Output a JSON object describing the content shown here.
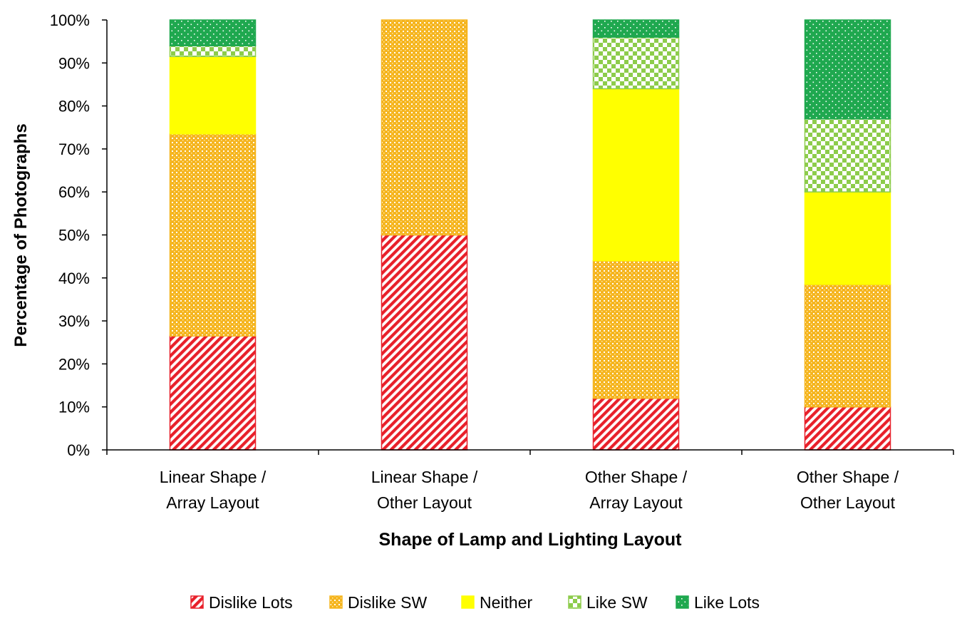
{
  "chart_data": {
    "type": "bar",
    "stacked": true,
    "normalized": true,
    "xlabel": "Shape of Lamp and Lighting Layout",
    "ylabel": "Percentage of Photographs",
    "ylim": [
      0,
      100
    ],
    "yticks": [
      "0%",
      "10%",
      "20%",
      "30%",
      "40%",
      "50%",
      "60%",
      "70%",
      "80%",
      "90%",
      "100%"
    ],
    "categories": [
      [
        "Linear Shape /",
        "Array Layout"
      ],
      [
        "Linear Shape /",
        "Other Layout"
      ],
      [
        "Other Shape /",
        "Array Layout"
      ],
      [
        "Other Shape /",
        "Other Layout"
      ]
    ],
    "series": [
      {
        "name": "Dislike Lots",
        "color": "#e8202a",
        "pattern": "diagonal-stripes",
        "values": [
          26.5,
          50,
          12,
          10
        ]
      },
      {
        "name": "Dislike SW",
        "color": "#f5b51f",
        "pattern": "dots",
        "values": [
          47,
          50,
          32,
          28.5
        ]
      },
      {
        "name": "Neither",
        "color": "#ffff00",
        "pattern": "solid",
        "values": [
          18,
          0,
          40,
          21.5
        ]
      },
      {
        "name": "Like SW",
        "color": "#8dcc4b",
        "pattern": "checker",
        "values": [
          2.5,
          0,
          12,
          17
        ]
      },
      {
        "name": "Like Lots",
        "color": "#1fa84f",
        "pattern": "sparse-dots",
        "values": [
          6,
          0,
          4,
          23
        ]
      }
    ],
    "legend_position": "bottom"
  }
}
